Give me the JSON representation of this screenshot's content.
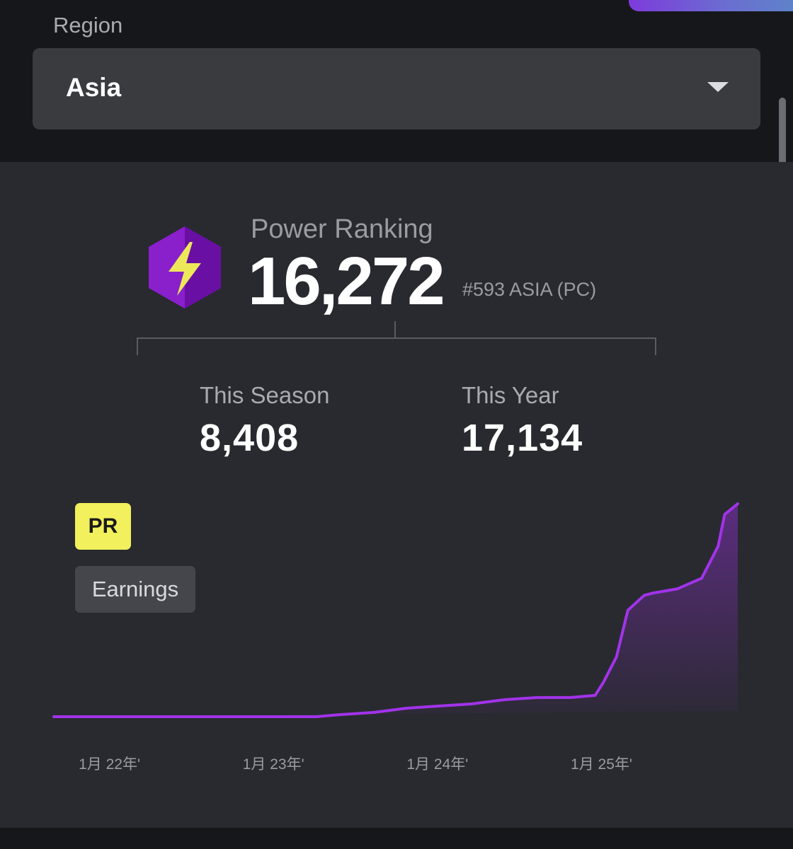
{
  "region": {
    "label": "Region",
    "selected": "Asia"
  },
  "power_ranking": {
    "label": "Power Ranking",
    "value": "16,272",
    "rank": "#593 ASIA (PC)"
  },
  "stats": [
    {
      "label": "This Season",
      "value": "8,408"
    },
    {
      "label": "This Year",
      "value": "17,134"
    }
  ],
  "toggles": {
    "pr": "PR",
    "earnings": "Earnings"
  },
  "colors": {
    "accent_purple": "#9b2fe0",
    "toggle_active": "#f2f05c",
    "background": "#282a2f"
  },
  "chart_data": {
    "type": "area",
    "x_ticks": [
      "1月 22年'",
      "1月 23年'",
      "1月 24年'",
      "1月 25年'"
    ],
    "tick_positions": [
      0,
      1,
      2,
      3
    ],
    "x": [
      -0.35,
      1.25,
      1.4,
      1.6,
      1.8,
      2.0,
      2.2,
      2.4,
      2.6,
      2.8,
      2.95,
      3.0,
      3.08,
      3.15,
      3.25,
      3.3,
      3.45,
      3.6,
      3.7,
      3.74,
      3.82
    ],
    "values": [
      0,
      0,
      1,
      2,
      4,
      5,
      6,
      8,
      9,
      9,
      10,
      16,
      28,
      50,
      57,
      58,
      60,
      65,
      80,
      95,
      100
    ],
    "xlim": [
      -0.35,
      3.82
    ],
    "ylim": [
      0,
      100
    ],
    "grid": false
  }
}
